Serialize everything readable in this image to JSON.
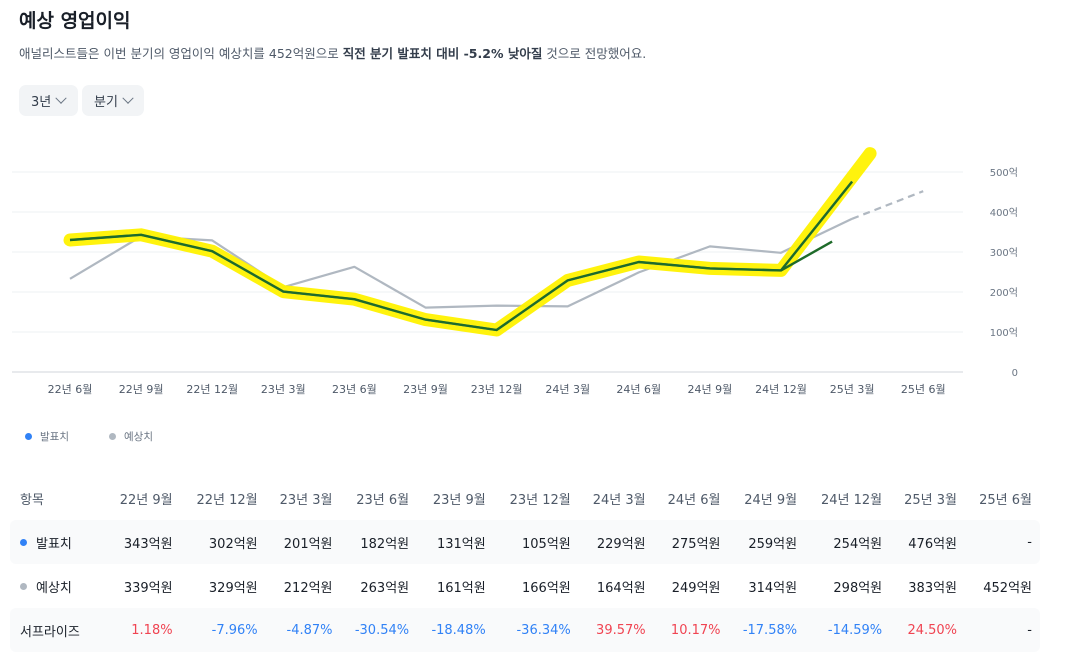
{
  "header": {
    "title": "예상 영업이익",
    "subtitle_pre": "애널리스트들은 이번 분기의 영업이익 예상치를 452억원으로 ",
    "subtitle_bold": "직전 분기 발표치 대비 -5.2% 낮아질",
    "subtitle_post": " 것으로 전망했어요."
  },
  "filters": {
    "period": "3년",
    "interval": "분기"
  },
  "legend": {
    "actual": "발표치",
    "estimate": "예상치"
  },
  "colors": {
    "actual": "#3182f6",
    "estimate": "#b0b8c1",
    "highlight": "#fff200",
    "overlay": "#1e6b2a",
    "positive": "#f04452",
    "negative": "#3182f6"
  },
  "chart_data": {
    "type": "line",
    "categories": [
      "22년 6월",
      "22년 9월",
      "22년 12월",
      "23년 3월",
      "23년 6월",
      "23년 9월",
      "23년 12월",
      "24년 3월",
      "24년 6월",
      "24년 9월",
      "24년 12월",
      "25년 3월",
      "25년 6월"
    ],
    "series": [
      {
        "name": "발표치",
        "values": [
          330,
          343,
          302,
          201,
          182,
          131,
          105,
          229,
          275,
          259,
          254,
          476,
          null
        ]
      },
      {
        "name": "예상치",
        "values": [
          233,
          339,
          329,
          212,
          263,
          161,
          166,
          164,
          249,
          314,
          298,
          383,
          452
        ]
      }
    ],
    "y_ticks": [
      "0",
      "100억",
      "200억",
      "300억",
      "400억",
      "500억"
    ],
    "ylim": [
      0,
      500
    ],
    "grid": true,
    "annotations": [
      "yellow highlighter stroke over 발표치 line",
      "dark green stroke over 발표치 line up to 24년 12월",
      "dashed 예상치 segment from 25년 3월 to 25년 6월"
    ]
  },
  "table": {
    "columns": [
      "항목",
      "22년 9월",
      "22년 12월",
      "23년 3월",
      "23년 6월",
      "23년 9월",
      "23년 12월",
      "24년 3월",
      "24년 6월",
      "24년 9월",
      "24년 12월",
      "25년 3월",
      "25년 6월"
    ],
    "rows": [
      {
        "label": "발표치",
        "values": [
          "343억원",
          "302억원",
          "201억원",
          "182억원",
          "131억원",
          "105억원",
          "229억원",
          "275억원",
          "259억원",
          "254억원",
          "476억원",
          "-"
        ]
      },
      {
        "label": "예상치",
        "values": [
          "339억원",
          "329억원",
          "212억원",
          "263억원",
          "161억원",
          "166억원",
          "164억원",
          "249억원",
          "314억원",
          "298억원",
          "383억원",
          "452억원"
        ]
      },
      {
        "label": "서프라이즈",
        "values": [
          "1.18%",
          "-7.96%",
          "-4.87%",
          "-30.54%",
          "-18.48%",
          "-36.34%",
          "39.57%",
          "10.17%",
          "-17.58%",
          "-14.59%",
          "24.50%",
          "-"
        ]
      }
    ]
  }
}
